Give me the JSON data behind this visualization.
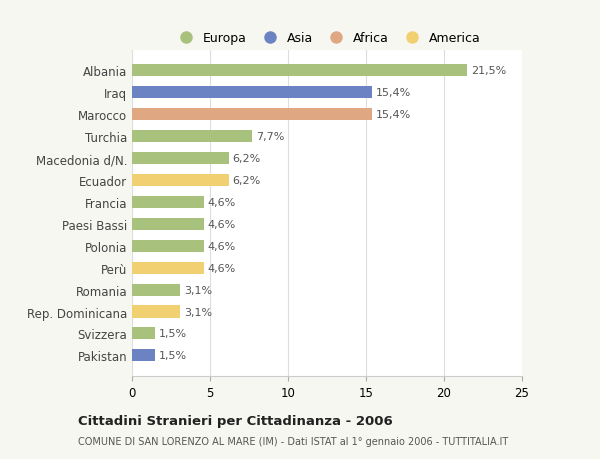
{
  "categories": [
    "Albania",
    "Iraq",
    "Marocco",
    "Turchia",
    "Macedonia d/N.",
    "Ecuador",
    "Francia",
    "Paesi Bassi",
    "Polonia",
    "Perù",
    "Romania",
    "Rep. Dominicana",
    "Svizzera",
    "Pakistan"
  ],
  "values": [
    21.5,
    15.4,
    15.4,
    7.7,
    6.2,
    6.2,
    4.6,
    4.6,
    4.6,
    4.6,
    3.1,
    3.1,
    1.5,
    1.5
  ],
  "labels": [
    "21,5%",
    "15,4%",
    "15,4%",
    "7,7%",
    "6,2%",
    "6,2%",
    "4,6%",
    "4,6%",
    "4,6%",
    "4,6%",
    "3,1%",
    "3,1%",
    "1,5%",
    "1,5%"
  ],
  "colors": [
    "#a8c17c",
    "#6b83c2",
    "#e0a882",
    "#a8c17c",
    "#a8c17c",
    "#f0d070",
    "#a8c17c",
    "#a8c17c",
    "#a8c17c",
    "#f0d070",
    "#a8c17c",
    "#f0d070",
    "#a8c17c",
    "#6b83c2"
  ],
  "legend_labels": [
    "Europa",
    "Asia",
    "Africa",
    "America"
  ],
  "legend_colors": [
    "#a8c17c",
    "#6b83c2",
    "#e0a882",
    "#f0d070"
  ],
  "xlim": [
    0,
    25
  ],
  "xticks": [
    0,
    5,
    10,
    15,
    20,
    25
  ],
  "title": "Cittadini Stranieri per Cittadinanza - 2006",
  "subtitle": "COMUNE DI SAN LORENZO AL MARE (IM) - Dati ISTAT al 1° gennaio 2006 - TUTTITALIA.IT",
  "bg_color": "#f7f7f2",
  "plot_bg": "#ffffff",
  "bar_height": 0.55,
  "label_fontsize": 8.0,
  "ytick_fontsize": 8.5,
  "xtick_fontsize": 8.5
}
